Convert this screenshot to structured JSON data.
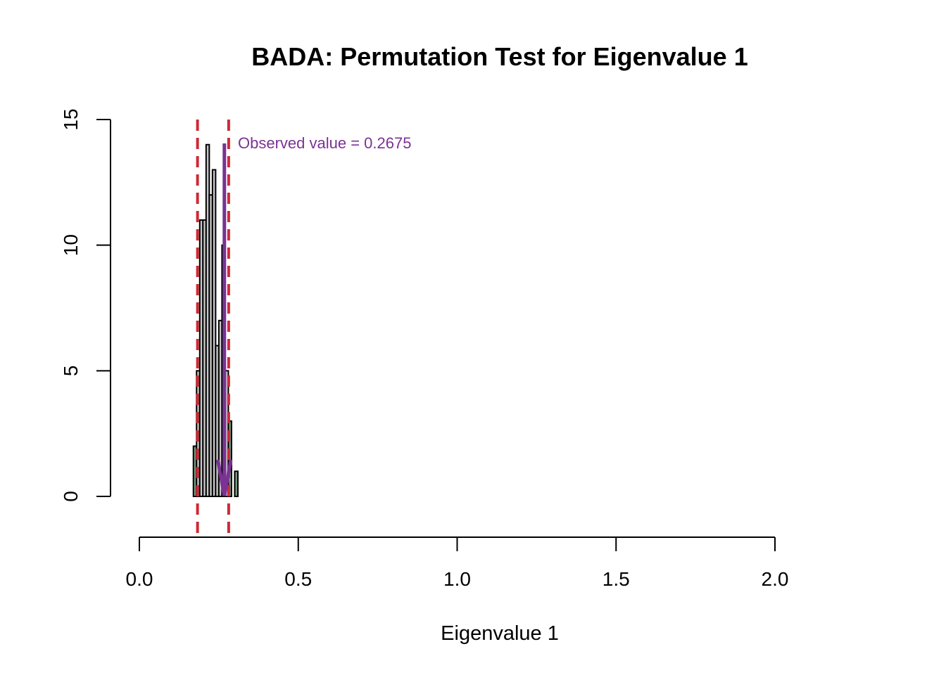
{
  "chart_data": {
    "type": "bar",
    "title": "BADA: Permutation Test for Eigenvalue 1",
    "xlabel": "Eigenvalue 1",
    "ylabel": "",
    "xlim": [
      0,
      2
    ],
    "ylim": [
      0,
      15
    ],
    "x_ticks": [
      "0.0",
      "0.5",
      "1.0",
      "1.5",
      "2.0"
    ],
    "y_ticks": [
      "0",
      "5",
      "10",
      "15"
    ],
    "bin_width": 0.01,
    "bins": [
      {
        "x0": 0.17,
        "x1": 0.18,
        "count": 2
      },
      {
        "x0": 0.18,
        "x1": 0.19,
        "count": 5
      },
      {
        "x0": 0.19,
        "x1": 0.2,
        "count": 11
      },
      {
        "x0": 0.2,
        "x1": 0.21,
        "count": 11
      },
      {
        "x0": 0.21,
        "x1": 0.22,
        "count": 14
      },
      {
        "x0": 0.22,
        "x1": 0.23,
        "count": 12
      },
      {
        "x0": 0.23,
        "x1": 0.24,
        "count": 13
      },
      {
        "x0": 0.24,
        "x1": 0.25,
        "count": 6
      },
      {
        "x0": 0.25,
        "x1": 0.26,
        "count": 7
      },
      {
        "x0": 0.26,
        "x1": 0.27,
        "count": 10
      },
      {
        "x0": 0.27,
        "x1": 0.28,
        "count": 5
      },
      {
        "x0": 0.28,
        "x1": 0.29,
        "count": 3
      },
      {
        "x0": 0.29,
        "x1": 0.3,
        "count": 0
      },
      {
        "x0": 0.3,
        "x1": 0.31,
        "count": 1
      }
    ],
    "critical_values": [
      0.183,
      0.281
    ],
    "observed_value": 0.2675,
    "annotation": "Observed value = 0.2675",
    "colors": {
      "bar_inside": "#c8c8c8",
      "bar_outside": "#7a9a80",
      "bar_stroke": "#000000",
      "critical_line": "#cc2a36",
      "observed": "#7b3294"
    }
  }
}
